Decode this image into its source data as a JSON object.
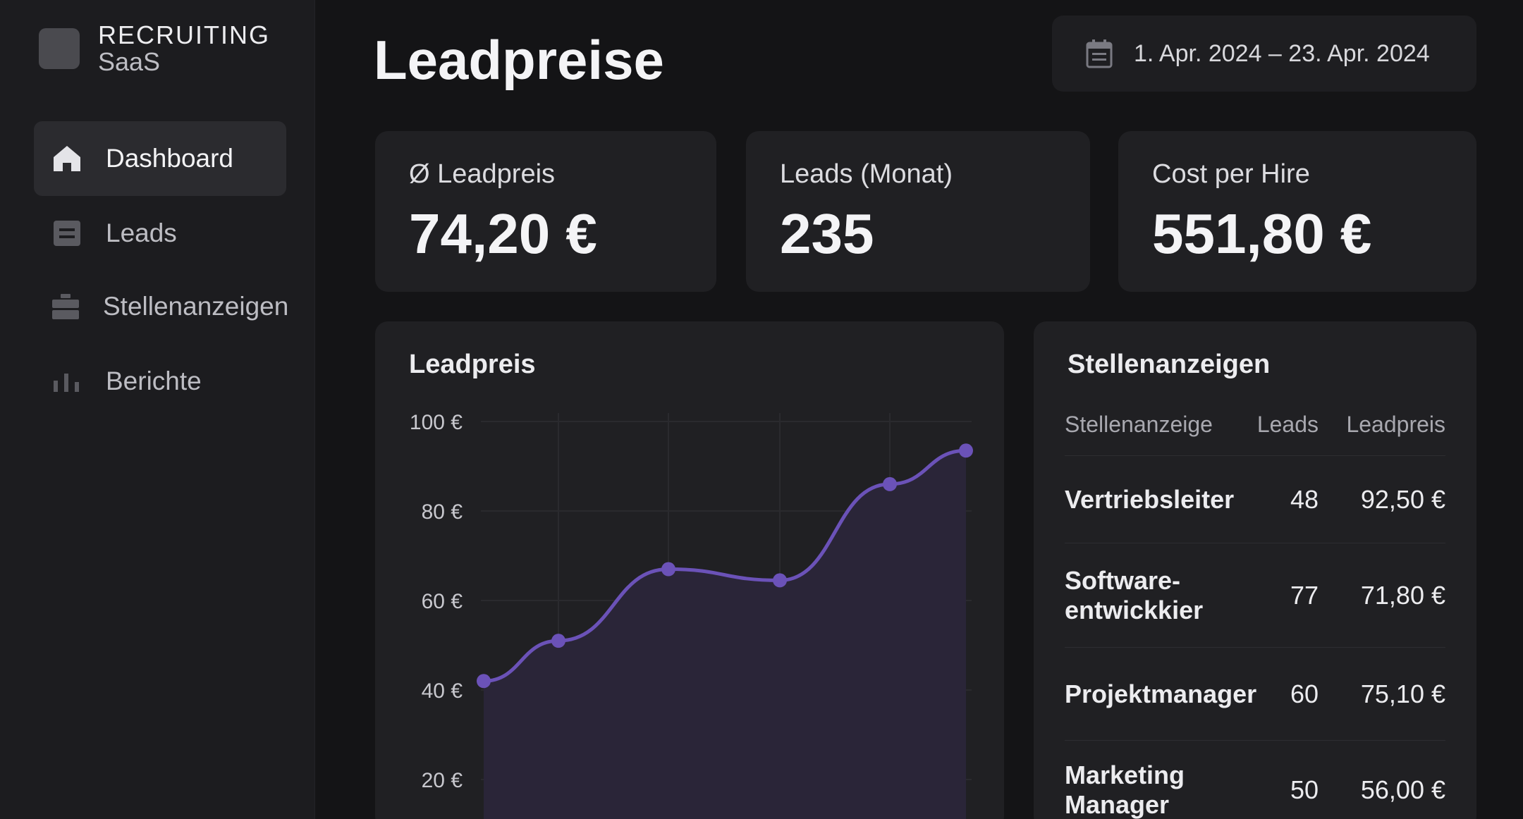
{
  "brand": {
    "name": "RECRUITING",
    "sub": "SaaS"
  },
  "sidebar": {
    "items": [
      {
        "label": "Dashboard",
        "icon": "home-icon",
        "active": true
      },
      {
        "label": "Leads",
        "icon": "list-icon",
        "active": false
      },
      {
        "label": "Stellenanzeigen",
        "icon": "briefcase-icon",
        "active": false
      },
      {
        "label": "Berichte",
        "icon": "bar-chart-icon",
        "active": false
      }
    ]
  },
  "header": {
    "title": "Leadpreise",
    "date_range": "1. Apr. 2024 – 23. Apr. 2024"
  },
  "stats": [
    {
      "label": "Ø Leadpreis",
      "value": "74,20 €"
    },
    {
      "label": "Leads (Monat)",
      "value": "235"
    },
    {
      "label": "Cost per Hire",
      "value": "551,80 €"
    }
  ],
  "chart_panel": {
    "title": "Leadpreis"
  },
  "chart_data": {
    "type": "area",
    "y_ticks": [
      "100 €",
      "80 €",
      "60 €",
      "40 €",
      "20 €"
    ],
    "y_tick_values": [
      100,
      80,
      60,
      40,
      20
    ],
    "ylim": [
      0,
      100
    ],
    "values": [
      42,
      51,
      67,
      64.5,
      86,
      93.5
    ],
    "accent": "#6b52b8",
    "fill": "#2a2538",
    "grid": true
  },
  "table_panel": {
    "title": "Stellenanzeigen",
    "columns": [
      "Stellenanzeige",
      "Leads",
      "Leadpreis"
    ],
    "rows": [
      {
        "name": "Vertriebsleiter",
        "leads": "48",
        "price": "92,50 €"
      },
      {
        "name": "Software-\nentwickkier",
        "leads": "77",
        "price": "71,80 €"
      },
      {
        "name": "Projektmanager",
        "leads": "60",
        "price": "75,10 €"
      },
      {
        "name": "Marketing\nManager",
        "leads": "50",
        "price": "56,00 €"
      }
    ]
  }
}
